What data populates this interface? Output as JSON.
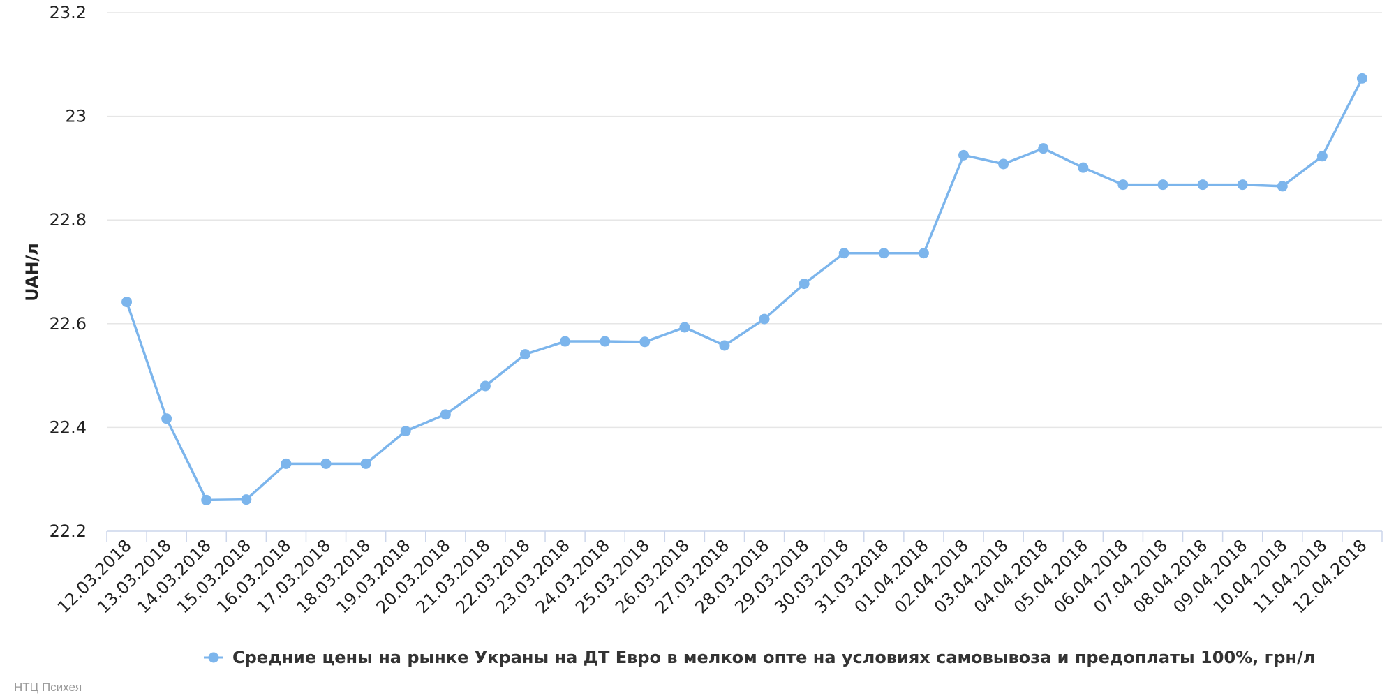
{
  "chart_data": {
    "type": "line",
    "categories": [
      "12.03.2018",
      "13.03.2018",
      "14.03.2018",
      "15.03.2018",
      "16.03.2018",
      "17.03.2018",
      "18.03.2018",
      "19.03.2018",
      "20.03.2018",
      "21.03.2018",
      "22.03.2018",
      "23.03.2018",
      "24.03.2018",
      "25.03.2018",
      "26.03.2018",
      "27.03.2018",
      "28.03.2018",
      "29.03.2018",
      "30.03.2018",
      "31.03.2018",
      "01.04.2018",
      "02.04.2018",
      "03.04.2018",
      "04.04.2018",
      "05.04.2018",
      "06.04.2018",
      "07.04.2018",
      "08.04.2018",
      "09.04.2018",
      "10.04.2018",
      "11.04.2018",
      "12.04.2018"
    ],
    "series": [
      {
        "name": "Средние цены на рынке Украны на ДТ Евро в мелком опте на условиях самовывоза и предоплаты 100%, грн/л",
        "color": "#7cb5ec",
        "values": [
          22.642,
          22.417,
          22.26,
          22.261,
          22.33,
          22.33,
          22.33,
          22.393,
          22.425,
          22.48,
          22.541,
          22.566,
          22.566,
          22.565,
          22.593,
          22.558,
          22.609,
          22.677,
          22.736,
          22.736,
          22.736,
          22.925,
          22.908,
          22.938,
          22.901,
          22.868,
          22.868,
          22.868,
          22.868,
          22.865,
          22.923,
          23.073
        ]
      }
    ],
    "ylabel": "UAH/л",
    "ylim": [
      22.2,
      23.2
    ],
    "yticks": [
      "22.2",
      "22.4",
      "22.6",
      "22.8",
      "23",
      "23.2"
    ],
    "grid": true,
    "legend_position": "bottom-center"
  },
  "credit": "НТЦ Психея"
}
